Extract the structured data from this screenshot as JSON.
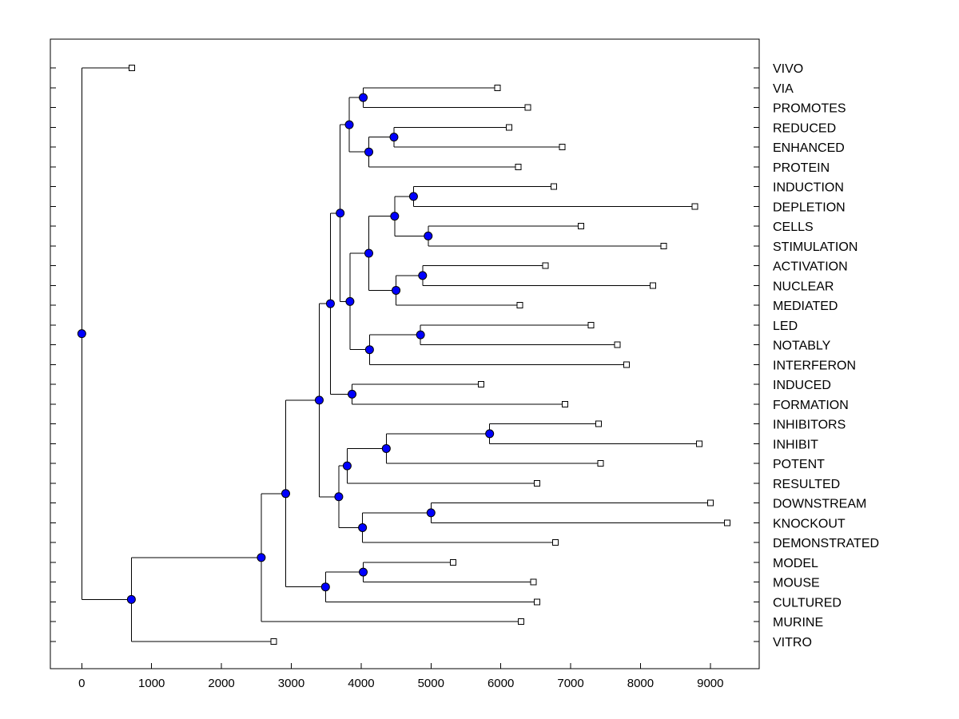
{
  "chart_data": {
    "type": "dendrogram",
    "title": "",
    "xlabel": "",
    "ylabel": "",
    "xlim": [
      -450,
      9700
    ],
    "xticks": [
      0,
      1000,
      2000,
      3000,
      4000,
      5000,
      6000,
      7000,
      8000,
      9000
    ],
    "xtick_labels": [
      "0",
      "1000",
      "2000",
      "3000",
      "4000",
      "5000",
      "6000",
      "7000",
      "8000",
      "9000"
    ],
    "grid": false,
    "leaves": [
      {
        "label": "VIVO",
        "value": 720
      },
      {
        "label": "VIA",
        "value": 5950
      },
      {
        "label": "PROMOTES",
        "value": 6390
      },
      {
        "label": "REDUCED",
        "value": 6120
      },
      {
        "label": "ENHANCED",
        "value": 6880
      },
      {
        "label": "PROTEIN",
        "value": 6250
      },
      {
        "label": "INDUCTION",
        "value": 6760
      },
      {
        "label": "DEPLETION",
        "value": 8780
      },
      {
        "label": "CELLS",
        "value": 7150
      },
      {
        "label": "STIMULATION",
        "value": 8330
      },
      {
        "label": "ACTIVATION",
        "value": 6640
      },
      {
        "label": "NUCLEAR",
        "value": 8180
      },
      {
        "label": "MEDIATED",
        "value": 6270
      },
      {
        "label": "LED",
        "value": 7290
      },
      {
        "label": "NOTABLY",
        "value": 7670
      },
      {
        "label": "INTERFERON",
        "value": 7800
      },
      {
        "label": "INDUCED",
        "value": 5720
      },
      {
        "label": "FORMATION",
        "value": 6920
      },
      {
        "label": "INHIBITORS",
        "value": 7400
      },
      {
        "label": "INHIBIT",
        "value": 8840
      },
      {
        "label": "POTENT",
        "value": 7430
      },
      {
        "label": "RESULTED",
        "value": 6520
      },
      {
        "label": "DOWNSTREAM",
        "value": 9000
      },
      {
        "label": "KNOCKOUT",
        "value": 9240
      },
      {
        "label": "DEMONSTRATED",
        "value": 6780
      },
      {
        "label": "MODEL",
        "value": 5320
      },
      {
        "label": "MOUSE",
        "value": 6470
      },
      {
        "label": "CULTURED",
        "value": 6520
      },
      {
        "label": "MURINE",
        "value": 6290
      },
      {
        "label": "VITRO",
        "value": 2750
      }
    ],
    "merges": [
      {
        "id": "n1",
        "value": 4030,
        "children": [
          "VIA",
          "PROMOTES"
        ]
      },
      {
        "id": "n2",
        "value": 4470,
        "children": [
          "REDUCED",
          "ENHANCED"
        ]
      },
      {
        "id": "n3",
        "value": 4110,
        "children": [
          "n2",
          "PROTEIN"
        ]
      },
      {
        "id": "n4",
        "value": 3830,
        "children": [
          "n1",
          "n3"
        ]
      },
      {
        "id": "n5",
        "value": 4750,
        "children": [
          "INDUCTION",
          "DEPLETION"
        ]
      },
      {
        "id": "n6",
        "value": 4960,
        "children": [
          "CELLS",
          "STIMULATION"
        ]
      },
      {
        "id": "n7",
        "value": 4480,
        "children": [
          "n5",
          "n6"
        ]
      },
      {
        "id": "n8",
        "value": 4880,
        "children": [
          "ACTIVATION",
          "NUCLEAR"
        ]
      },
      {
        "id": "n9",
        "value": 4500,
        "children": [
          "n8",
          "MEDIATED"
        ]
      },
      {
        "id": "n10",
        "value": 4110,
        "children": [
          "n7",
          "n9"
        ]
      },
      {
        "id": "n11",
        "value": 4850,
        "children": [
          "LED",
          "NOTABLY"
        ]
      },
      {
        "id": "n12",
        "value": 4120,
        "children": [
          "n11",
          "INTERFERON"
        ]
      },
      {
        "id": "n13",
        "value": 3840,
        "children": [
          "n10",
          "n12"
        ]
      },
      {
        "id": "n14",
        "value": 3700,
        "children": [
          "n4",
          "n13"
        ]
      },
      {
        "id": "n15",
        "value": 3870,
        "children": [
          "INDUCED",
          "FORMATION"
        ]
      },
      {
        "id": "n16",
        "value": 3560,
        "children": [
          "n14",
          "n15"
        ]
      },
      {
        "id": "n17",
        "value": 5840,
        "children": [
          "INHIBITORS",
          "INHIBIT"
        ]
      },
      {
        "id": "n18",
        "value": 4360,
        "children": [
          "n17",
          "POTENT"
        ]
      },
      {
        "id": "n19",
        "value": 3800,
        "children": [
          "n18",
          "RESULTED"
        ]
      },
      {
        "id": "n20",
        "value": 5000,
        "children": [
          "DOWNSTREAM",
          "KNOCKOUT"
        ]
      },
      {
        "id": "n21",
        "value": 4020,
        "children": [
          "n20",
          "DEMONSTRATED"
        ]
      },
      {
        "id": "n22",
        "value": 3680,
        "children": [
          "n19",
          "n21"
        ]
      },
      {
        "id": "n23",
        "value": 3400,
        "children": [
          "n16",
          "n22"
        ]
      },
      {
        "id": "n24",
        "value": 4030,
        "children": [
          "MODEL",
          "MOUSE"
        ]
      },
      {
        "id": "n25",
        "value": 3490,
        "children": [
          "n24",
          "CULTURED"
        ]
      },
      {
        "id": "n26",
        "value": 2920,
        "children": [
          "n23",
          "n25"
        ]
      },
      {
        "id": "n27",
        "value": 2570,
        "children": [
          "n26",
          "MURINE"
        ]
      },
      {
        "id": "n28",
        "value": 710,
        "children": [
          "n27",
          "VITRO"
        ]
      },
      {
        "id": "n29",
        "value": 0,
        "children": [
          "VIVO",
          "n28"
        ]
      }
    ],
    "node_color": "#0000ff",
    "leaf_marker_color": "#ffffff"
  }
}
